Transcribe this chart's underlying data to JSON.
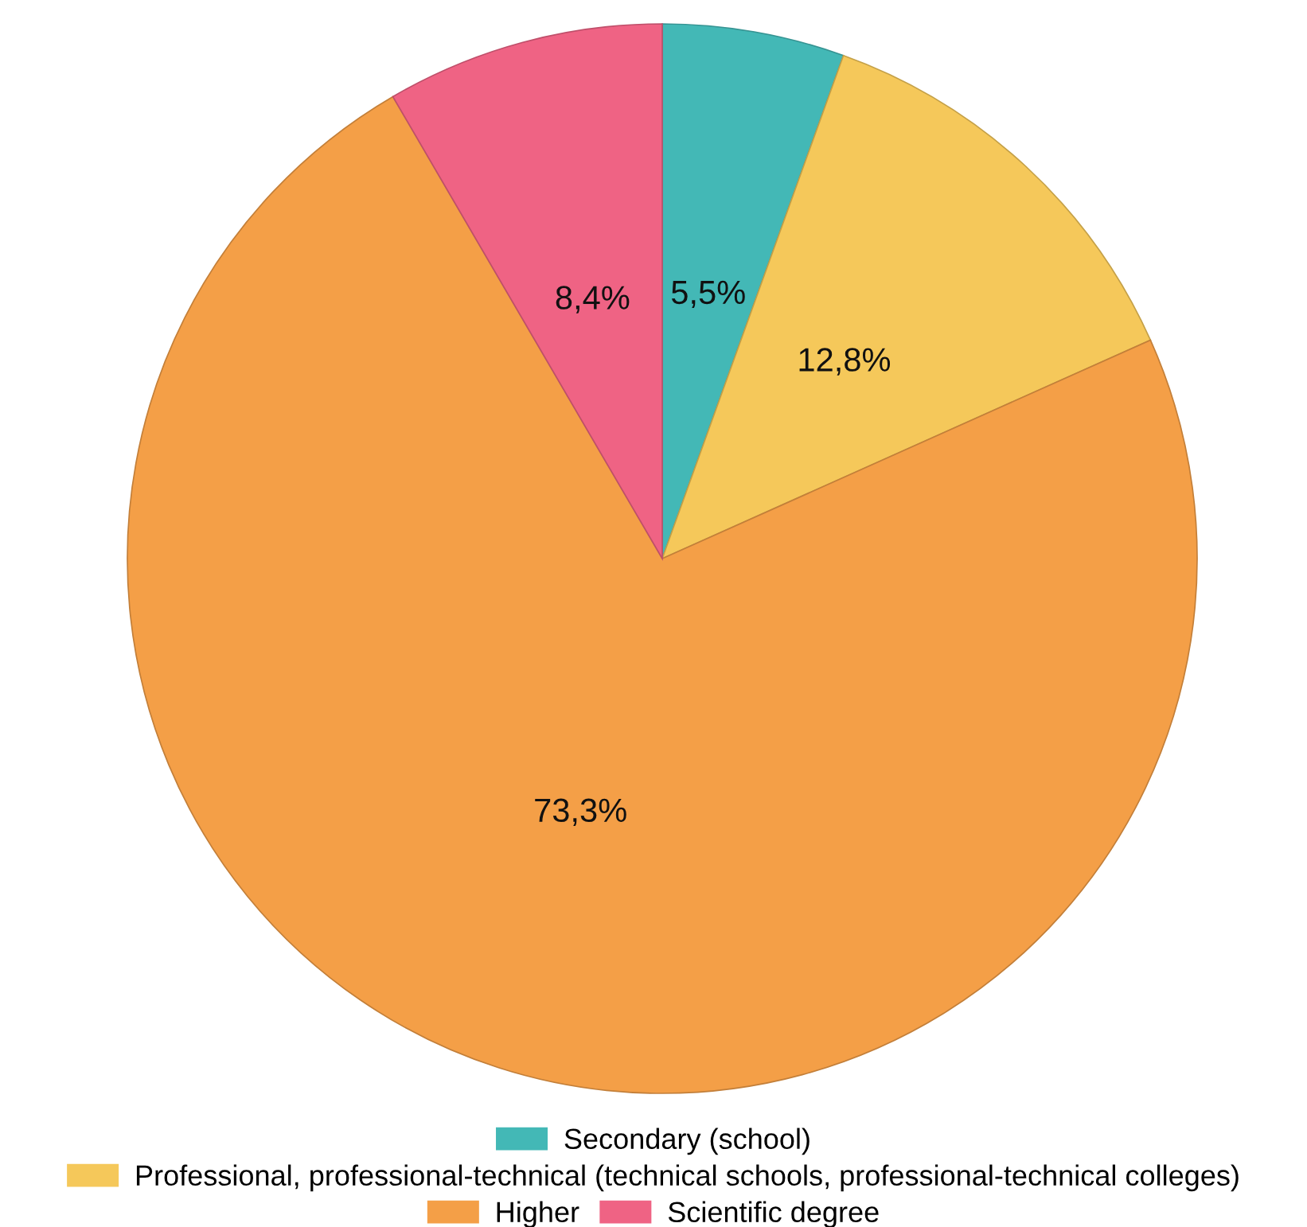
{
  "chart_data": {
    "type": "pie",
    "categories": [
      "Secondary (school)",
      "Professional, professional-technical (technical schools, professional-technical colleges)",
      "Higher",
      "Scientific degree"
    ],
    "values": [
      5.5,
      12.8,
      73.3,
      8.4
    ],
    "colors": [
      "#43b8b6",
      "#f5c85a",
      "#f49f47",
      "#ef6384"
    ],
    "value_labels": [
      "5,5%",
      "12,8%",
      "73,3%",
      "8,4%"
    ],
    "legend": "bottom"
  }
}
